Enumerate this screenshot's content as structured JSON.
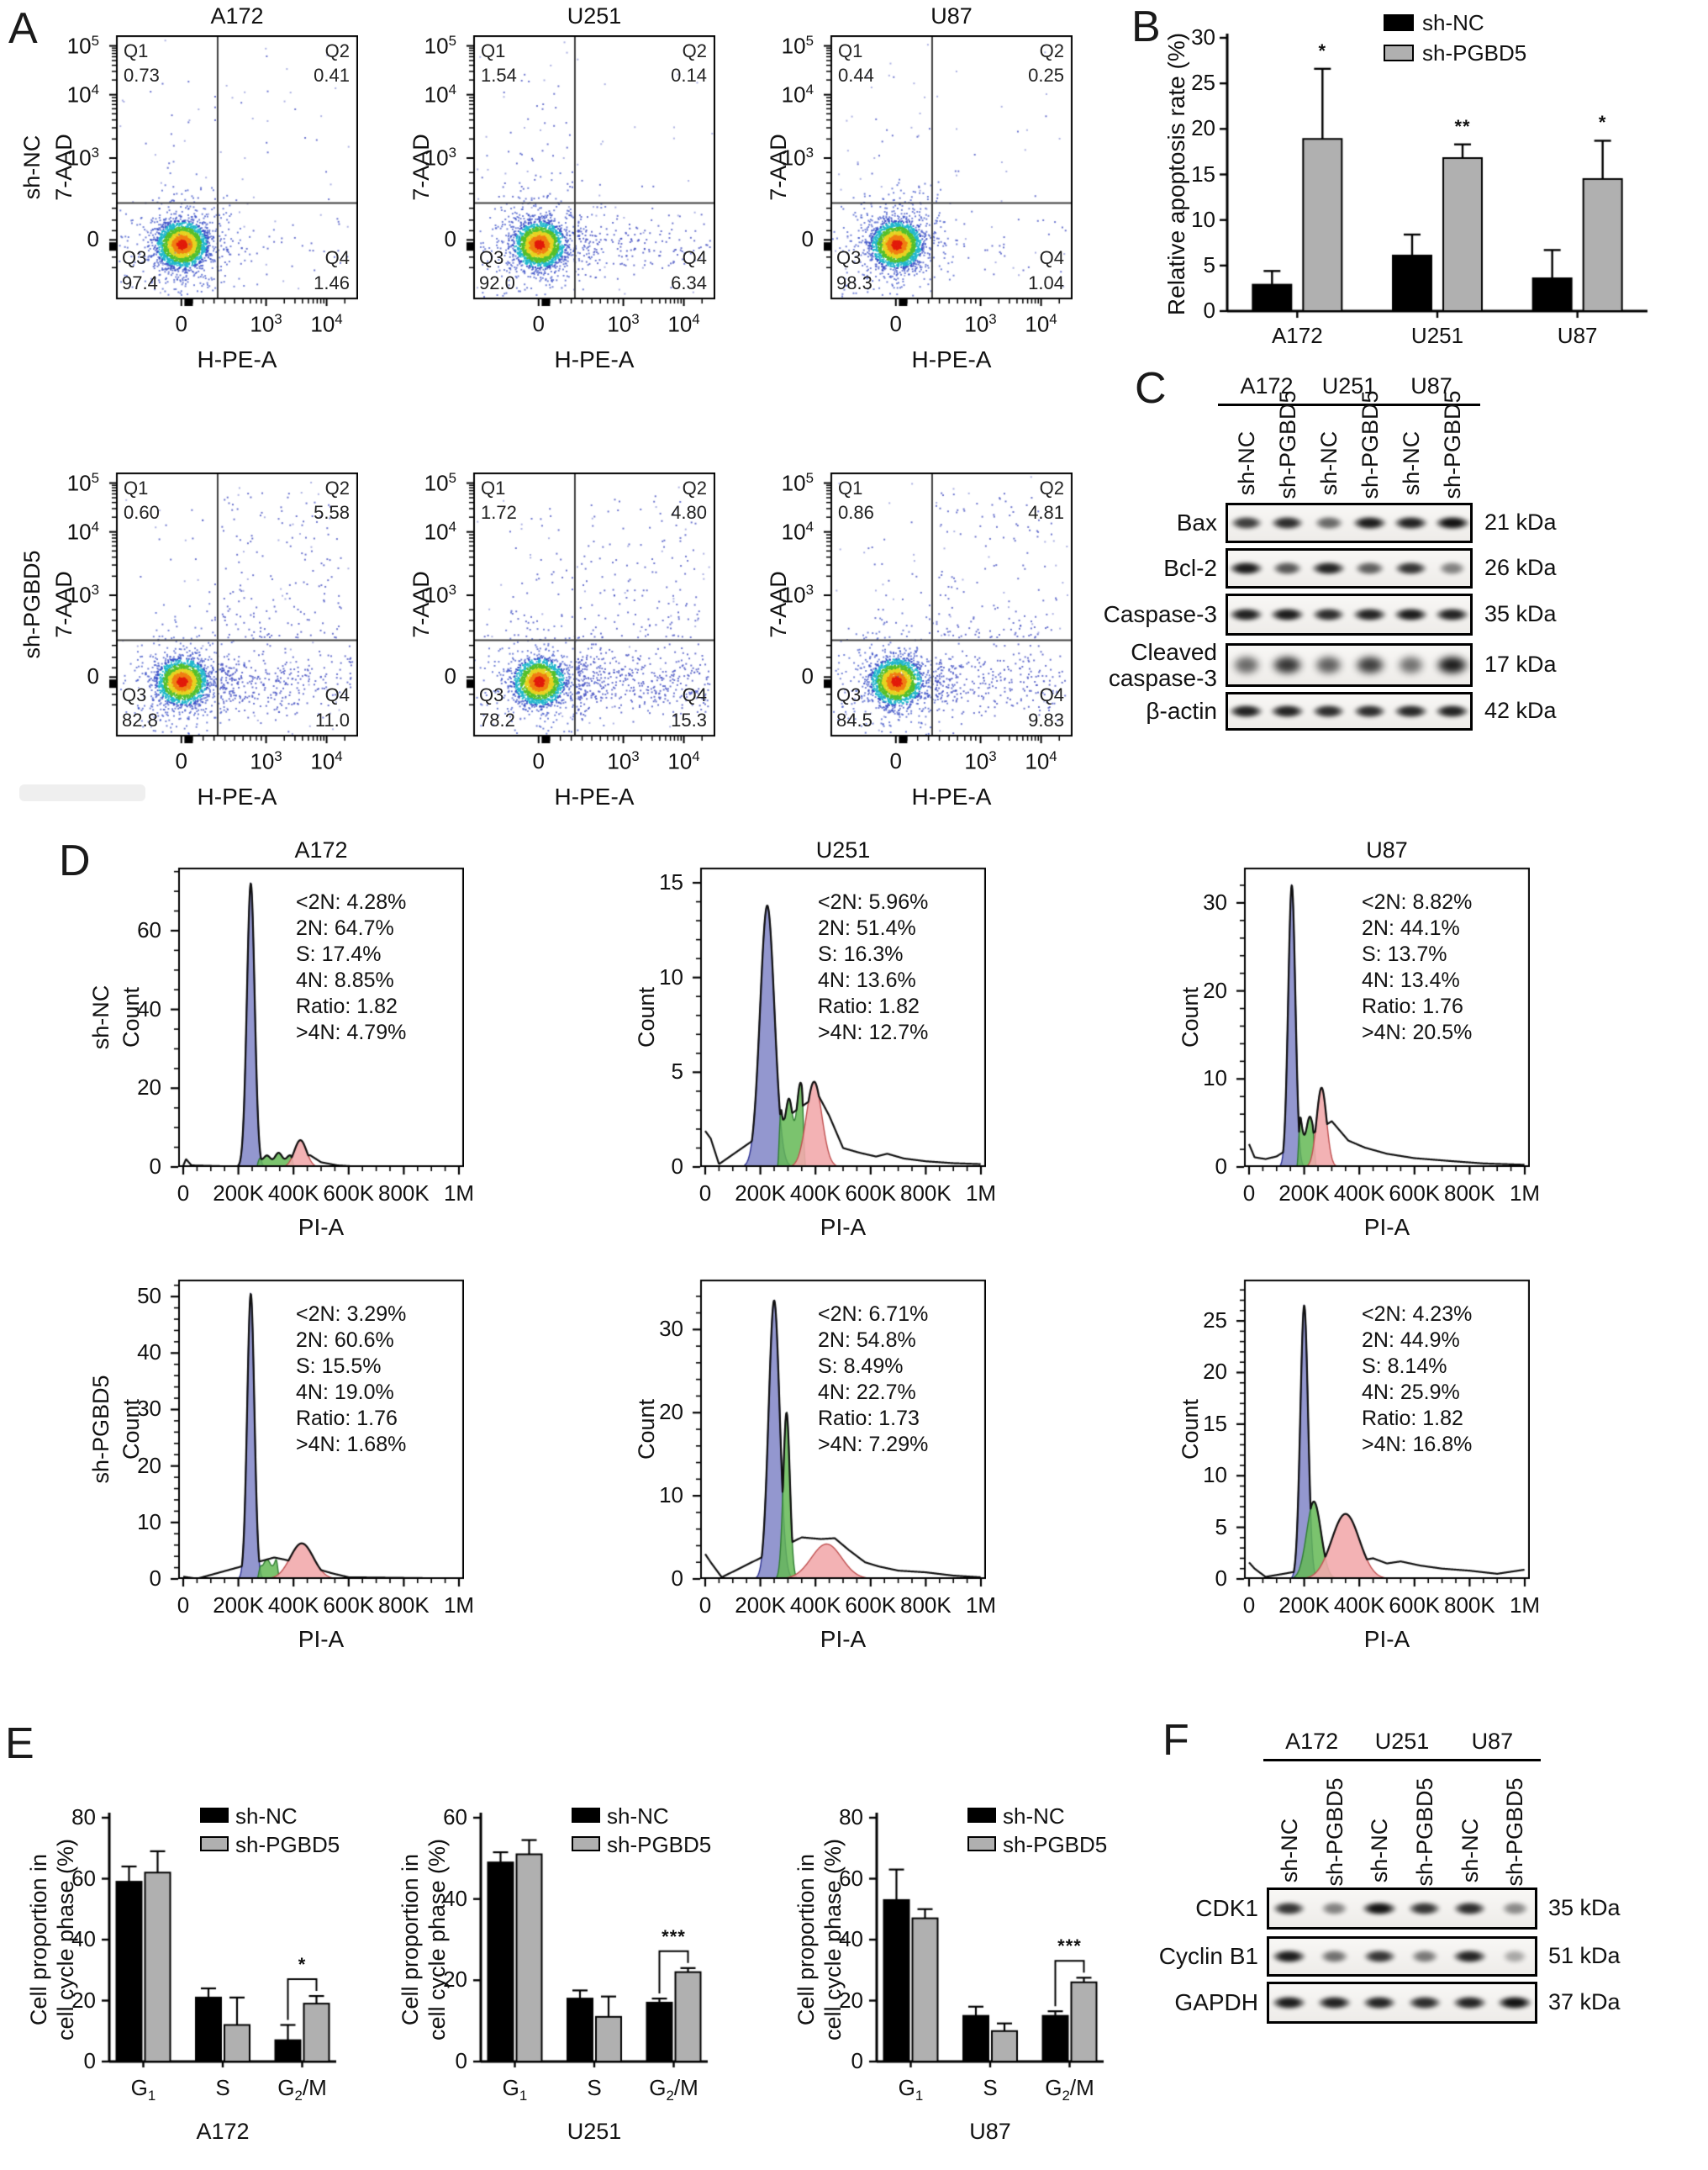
{
  "panel_a": {
    "label": "A",
    "col_titles": [
      "A172",
      "U251",
      "U87"
    ],
    "row_labels": [
      "sh-NC",
      "sh-PGBD5"
    ],
    "y_axis": "7-AAD",
    "x_axis": "H-PE-A",
    "y_ticks": [
      "10^5",
      "10^4",
      "10^3",
      "0"
    ],
    "x_ticks": [
      "0",
      "10^3",
      "10^4"
    ],
    "quad_names": [
      "Q1",
      "Q2",
      "Q3",
      "Q4"
    ],
    "plots": [
      {
        "cell_line": "A172",
        "condition": "sh-NC",
        "q1": "0.73",
        "q2": "0.41",
        "q3": "97.4",
        "q4": "1.46"
      },
      {
        "cell_line": "U251",
        "condition": "sh-NC",
        "q1": "1.54",
        "q2": "0.14",
        "q3": "92.0",
        "q4": "6.34"
      },
      {
        "cell_line": "U87",
        "condition": "sh-NC",
        "q1": "0.44",
        "q2": "0.25",
        "q3": "98.3",
        "q4": "1.04"
      },
      {
        "cell_line": "A172",
        "condition": "sh-PGBD5",
        "q1": "0.60",
        "q2": "5.58",
        "q3": "82.8",
        "q4": "11.0"
      },
      {
        "cell_line": "U251",
        "condition": "sh-PGBD5",
        "q1": "1.72",
        "q2": "4.80",
        "q3": "78.2",
        "q4": "15.3"
      },
      {
        "cell_line": "U87",
        "condition": "sh-PGBD5",
        "q1": "0.86",
        "q2": "4.81",
        "q3": "84.5",
        "q4": "9.83"
      }
    ]
  },
  "panel_b": {
    "label": "B",
    "chart": 0
  },
  "panel_c": {
    "label": "C",
    "groups": [
      "A172",
      "U251",
      "U87"
    ],
    "lane_labels": [
      "sh-NC",
      "sh-PGBD5",
      "sh-NC",
      "sh-PGBD5",
      "sh-NC",
      "sh-PGBD5"
    ],
    "blots": [
      {
        "protein": "Bax",
        "kda": "21 kDa",
        "bands": [
          0.75,
          0.85,
          0.5,
          0.95,
          0.92,
          1.0
        ]
      },
      {
        "protein": "Bcl-2",
        "kda": "26 kDa",
        "bands": [
          0.95,
          0.6,
          0.9,
          0.55,
          0.8,
          0.35
        ]
      },
      {
        "protein": "Caspase-3",
        "kda": "35 kDa",
        "bands": [
          0.92,
          0.95,
          0.85,
          0.9,
          0.95,
          0.9
        ]
      },
      {
        "protein": "Cleaved caspase-3",
        "kda": "17 kDa",
        "bands": [
          0.5,
          0.8,
          0.55,
          0.75,
          0.45,
          0.95
        ],
        "fuzzy": true
      },
      {
        "protein": "β-actin",
        "kda": "42 kDa",
        "bands": [
          0.92,
          0.9,
          0.85,
          0.85,
          0.88,
          0.9
        ]
      }
    ]
  },
  "panel_d": {
    "label": "D",
    "col_titles": [
      "A172",
      "U251",
      "U87"
    ],
    "row_labels": [
      "sh-NC",
      "sh-PGBD5"
    ],
    "ylabel": "Count",
    "xlabel": "PI-A",
    "x_ticks": [
      "0",
      "200K",
      "400K",
      "600K",
      "800K",
      "1M"
    ],
    "plots": [
      {
        "cell_line": "A172",
        "condition": "sh-NC",
        "ymax": 76,
        "yticks": [
          0,
          20,
          40,
          60
        ],
        "stats": [
          "<2N: 4.28%",
          "2N: 64.7%",
          "S: 17.4%",
          "4N: 8.85%",
          "Ratio: 1.82",
          ">4N: 4.79%"
        ],
        "g1": {
          "c": 0.245,
          "s": 0.014,
          "h": 72
        },
        "s_phase": {
          "type": "region",
          "a": 0.265,
          "b": 0.405,
          "h": 3.4
        },
        "g2": {
          "c": 0.425,
          "s": 0.022,
          "h": 6.8
        },
        "outline": [
          [
            0,
            0.3
          ],
          [
            0.01,
            2.0
          ],
          [
            0.03,
            0.4
          ],
          [
            0.23,
            0.05
          ],
          [
            0.46,
            3.0
          ],
          [
            0.5,
            1.2
          ],
          [
            0.56,
            0.4
          ],
          [
            0.62,
            0.15
          ],
          [
            1,
            0.1
          ]
        ]
      },
      {
        "cell_line": "U251",
        "condition": "sh-NC",
        "ymax": 15.8,
        "yticks": [
          0,
          5,
          10,
          15
        ],
        "stats": [
          "<2N: 5.96%",
          "2N: 51.4%",
          "S: 16.3%",
          "4N: 13.6%",
          "Ratio: 1.82",
          ">4N: 12.7%"
        ],
        "g1": {
          "c": 0.225,
          "s": 0.026,
          "h": 13.8
        },
        "s_phase": {
          "type": "region",
          "a": 0.262,
          "b": 0.365,
          "h": 4.2
        },
        "g2": {
          "c": 0.395,
          "s": 0.028,
          "h": 4.5
        },
        "outline": [
          [
            0,
            1.9
          ],
          [
            0.02,
            1.5
          ],
          [
            0.05,
            0.15
          ],
          [
            0.41,
            3.8
          ],
          [
            0.45,
            2.7
          ],
          [
            0.5,
            1.0
          ],
          [
            0.56,
            0.75
          ],
          [
            0.62,
            0.55
          ],
          [
            0.66,
            0.7
          ],
          [
            0.72,
            0.45
          ],
          [
            0.8,
            0.3
          ],
          [
            0.9,
            0.2
          ],
          [
            1,
            0.15
          ]
        ]
      },
      {
        "cell_line": "U87",
        "condition": "sh-NC",
        "ymax": 34,
        "yticks": [
          0,
          10,
          20,
          30
        ],
        "stats": [
          "<2N: 8.82%",
          "2N: 44.1%",
          "S: 13.7%",
          "4N: 13.4%",
          "Ratio: 1.76",
          ">4N: 20.5%"
        ],
        "g1": {
          "c": 0.155,
          "s": 0.013,
          "h": 32
        },
        "s_phase": {
          "type": "region",
          "a": 0.173,
          "b": 0.245,
          "h": 6.6
        },
        "g2": {
          "c": 0.263,
          "s": 0.018,
          "h": 9
        },
        "outline": [
          [
            0,
            2.6
          ],
          [
            0.02,
            1.1
          ],
          [
            0.06,
            0.9
          ],
          [
            0.1,
            1.2
          ],
          [
            0.3,
            5.2
          ],
          [
            0.36,
            3.0
          ],
          [
            0.42,
            2.2
          ],
          [
            0.5,
            1.5
          ],
          [
            0.6,
            1.0
          ],
          [
            0.72,
            0.7
          ],
          [
            0.85,
            0.4
          ],
          [
            1,
            0.25
          ]
        ]
      },
      {
        "cell_line": "A172",
        "condition": "sh-PGBD5",
        "ymax": 53,
        "yticks": [
          0,
          10,
          20,
          30,
          40,
          50
        ],
        "stats": [
          "<2N: 3.29%",
          "2N: 60.6%",
          "S: 15.5%",
          "4N: 19.0%",
          "Ratio: 1.76",
          ">4N: 1.68%"
        ],
        "g1": {
          "c": 0.245,
          "s": 0.013,
          "h": 50.5
        },
        "s_phase": {
          "type": "region",
          "a": 0.268,
          "b": 0.35,
          "h": 4.0
        },
        "g2": {
          "c": 0.43,
          "s": 0.042,
          "h": 6.3
        },
        "outline": [
          [
            0,
            0.4
          ],
          [
            0.05,
            0.05
          ],
          [
            0.33,
            3.8
          ],
          [
            0.37,
            3.4
          ],
          [
            0.54,
            1.0
          ],
          [
            0.6,
            0.3
          ],
          [
            1,
            0.08
          ]
        ]
      },
      {
        "cell_line": "U251",
        "condition": "sh-PGBD5",
        "ymax": 36,
        "yticks": [
          0,
          10,
          20,
          30
        ],
        "stats": [
          "<2N: 6.71%",
          "2N: 54.8%",
          "S: 8.49%",
          "4N: 22.7%",
          "Ratio: 1.73",
          ">4N: 7.29%"
        ],
        "g1": {
          "c": 0.25,
          "s": 0.02,
          "h": 33.5
        },
        "s_phase": {
          "type": "gauss",
          "c": 0.295,
          "s": 0.012,
          "h": 20
        },
        "g2": {
          "c": 0.44,
          "s": 0.055,
          "h": 4.2
        },
        "outline": [
          [
            0,
            3.0
          ],
          [
            0.02,
            2.0
          ],
          [
            0.06,
            0.2
          ],
          [
            0.35,
            5.0
          ],
          [
            0.42,
            4.8
          ],
          [
            0.47,
            4.9
          ],
          [
            0.52,
            3.5
          ],
          [
            0.58,
            2.0
          ],
          [
            0.63,
            1.5
          ],
          [
            0.7,
            1.0
          ],
          [
            0.8,
            0.8
          ],
          [
            0.9,
            0.4
          ],
          [
            1,
            0.2
          ]
        ]
      },
      {
        "cell_line": "U87",
        "condition": "sh-PGBD5",
        "ymax": 29,
        "yticks": [
          0,
          5,
          10,
          15,
          20,
          25
        ],
        "stats": [
          "<2N: 4.23%",
          "2N: 44.9%",
          "S: 8.14%",
          "4N: 25.9%",
          "Ratio: 1.82",
          ">4N: 16.8%"
        ],
        "g1": {
          "c": 0.2,
          "s": 0.014,
          "h": 26.5
        },
        "s_phase": {
          "type": "gauss",
          "c": 0.235,
          "s": 0.026,
          "h": 7.5
        },
        "g2": {
          "c": 0.35,
          "s": 0.05,
          "h": 6.3
        },
        "outline": [
          [
            0,
            1.6
          ],
          [
            0.02,
            1.0
          ],
          [
            0.06,
            0.2
          ],
          [
            0.45,
            2.0
          ],
          [
            0.5,
            1.5
          ],
          [
            0.55,
            1.7
          ],
          [
            0.62,
            1.3
          ],
          [
            0.7,
            1.0
          ],
          [
            0.8,
            0.8
          ],
          [
            0.9,
            0.5
          ],
          [
            1,
            0.9
          ]
        ]
      }
    ]
  },
  "panel_e": {
    "label": "E",
    "charts": [
      1,
      2,
      3
    ],
    "ylabel_line1": "Cell proportion in",
    "ylabel_line2": "cell cycle phase (%)"
  },
  "panel_f": {
    "label": "F",
    "groups": [
      "A172",
      "U251",
      "U87"
    ],
    "lane_labels": [
      "sh-NC",
      "sh-PGBD5",
      "sh-NC",
      "sh-PGBD5",
      "sh-NC",
      "sh-PGBD5"
    ],
    "blots": [
      {
        "protein": "CDK1",
        "kda": "35 kDa",
        "bands": [
          0.8,
          0.35,
          1.0,
          0.8,
          0.85,
          0.3
        ]
      },
      {
        "protein": "Cyclin B1",
        "kda": "51 kDa",
        "bands": [
          0.95,
          0.45,
          0.8,
          0.4,
          0.9,
          0.12
        ]
      },
      {
        "protein": "GAPDH",
        "kda": "37 kDa",
        "bands": [
          0.95,
          0.92,
          0.9,
          0.85,
          0.9,
          1.0
        ]
      }
    ]
  },
  "chart_data": [
    {
      "id": "B",
      "type": "bar",
      "ylabel": "Relative apoptosis rate (%)",
      "ylim": [
        0,
        30
      ],
      "yticks": [
        0,
        5,
        10,
        15,
        20,
        25,
        30
      ],
      "categories": [
        "A172",
        "U251",
        "U87"
      ],
      "series": [
        {
          "name": "sh-NC",
          "color": "#000000",
          "values": [
            2.9,
            6.1,
            3.6
          ],
          "errors": [
            1.5,
            2.3,
            3.1
          ]
        },
        {
          "name": "sh-PGBD5",
          "color": "#b0b0b0",
          "values": [
            18.9,
            16.8,
            14.5
          ],
          "errors": [
            7.7,
            1.5,
            4.2
          ]
        }
      ],
      "significance": [
        "*",
        "**",
        "*"
      ],
      "legend_position": "top-right",
      "grid": false
    },
    {
      "id": "E-A172",
      "type": "bar",
      "cell_line": "A172",
      "ylabel": "Cell proportion in cell cycle phase (%)",
      "ylim": [
        0,
        80
      ],
      "yticks": [
        0,
        20,
        40,
        60,
        80
      ],
      "categories": [
        "G_1",
        "S",
        "G_2/M"
      ],
      "series": [
        {
          "name": "sh-NC",
          "color": "#000000",
          "values": [
            59,
            21,
            7
          ],
          "errors": [
            5,
            3,
            5
          ]
        },
        {
          "name": "sh-PGBD5",
          "color": "#b0b0b0",
          "values": [
            62,
            12,
            19
          ],
          "errors": [
            7,
            9,
            2.5
          ]
        }
      ],
      "significance": [
        null,
        null,
        "*"
      ],
      "grid": false
    },
    {
      "id": "E-U251",
      "type": "bar",
      "cell_line": "U251",
      "ylabel": "Cell proportion in cell cycle phase (%)",
      "ylim": [
        0,
        60
      ],
      "yticks": [
        0,
        20,
        40,
        60
      ],
      "categories": [
        "G_1",
        "S",
        "G_2/M"
      ],
      "series": [
        {
          "name": "sh-NC",
          "color": "#000000",
          "values": [
            49,
            15.5,
            14.5
          ],
          "errors": [
            2.5,
            2,
            1
          ]
        },
        {
          "name": "sh-PGBD5",
          "color": "#b0b0b0",
          "values": [
            51,
            11,
            22
          ],
          "errors": [
            3.5,
            5,
            1
          ]
        }
      ],
      "significance": [
        null,
        null,
        "***"
      ],
      "grid": false
    },
    {
      "id": "E-U87",
      "type": "bar",
      "cell_line": "U87",
      "ylabel": "Cell proportion in cell cycle phase (%)",
      "ylim": [
        0,
        80
      ],
      "yticks": [
        0,
        20,
        40,
        60,
        80
      ],
      "categories": [
        "G_1",
        "S",
        "G_2/M"
      ],
      "series": [
        {
          "name": "sh-NC",
          "color": "#000000",
          "values": [
            53,
            15,
            15
          ],
          "errors": [
            10,
            3,
            1.5
          ]
        },
        {
          "name": "sh-PGBD5",
          "color": "#b0b0b0",
          "values": [
            47,
            10,
            26
          ],
          "errors": [
            3,
            2.5,
            1.5
          ]
        }
      ],
      "significance": [
        null,
        null,
        "***"
      ],
      "grid": false
    }
  ]
}
